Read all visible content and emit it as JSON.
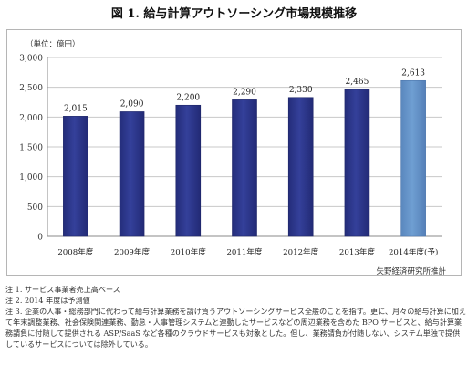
{
  "title": "図 1.  給与計算アウトソーシング市場規模推移",
  "unit_label": "（単位：億円）",
  "source": "矢野経済研究所推計",
  "colors": {
    "bar": "#34409a",
    "bar_forecast": "#6f9fd2",
    "grid": "#c8c8c8",
    "axis": "#888888"
  },
  "chart_data": {
    "type": "bar",
    "title": "給与計算アウトソーシング市場規模推移",
    "xlabel": "",
    "ylabel": "（単位：億円）",
    "categories": [
      "2008年度",
      "2009年度",
      "2010年度",
      "2011年度",
      "2012年度",
      "2013年度",
      "2014年度(予)"
    ],
    "values": [
      2015,
      2090,
      2200,
      2290,
      2330,
      2465,
      2613
    ],
    "data_labels": [
      "2,015",
      "2,090",
      "2,200",
      "2,290",
      "2,330",
      "2,465",
      "2,613"
    ],
    "forecast_index": 6,
    "ylim": [
      0,
      3000
    ],
    "yticks": [
      0,
      500,
      1000,
      1500,
      2000,
      2500,
      3000
    ],
    "ytick_labels": [
      "0",
      "500",
      "1,000",
      "1,500",
      "2,000",
      "2,500",
      "3,000"
    ],
    "grid": true,
    "legend": "none"
  },
  "notes": [
    "注 1. サービス事業者売上高ベース",
    "注 2. 2014 年度は予測値",
    "注 3. 企業の人事・総務部門に代わって給与計算業務を請け負うアウトソーシングサービス全般のことを指す。更に、月々の給与計算に加えて年末調整業務、社会保険関連業務、勤怠・人事管理システムと連動したサービスなどの周辺業務を含めた BPO サービスと、給与計算業務請負に付随して提供される ASP/SaaS など各種のクラウドサービスも対象とした。但し、業務請負が付随しない、システム単独で提供しているサービスについては除外している。"
  ]
}
